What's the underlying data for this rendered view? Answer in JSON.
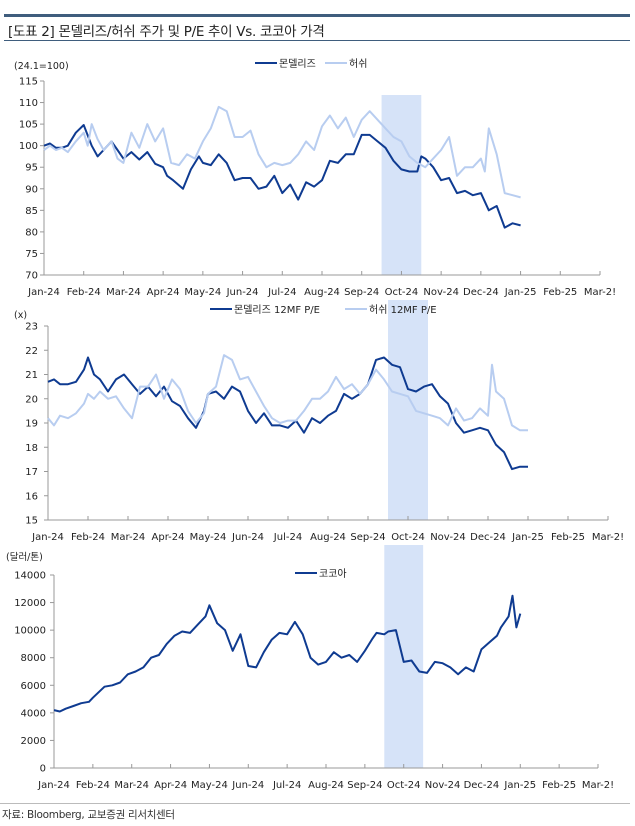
{
  "header": {
    "title": "[도표 2] 몬델리즈/허쉬 주가 및 P/E 추이 Vs. 코코아 가격"
  },
  "footer": {
    "source": "자료: Bloomberg, 교보증권 리서치센터"
  },
  "colors": {
    "dark_series": "#0f3b91",
    "light_series": "#b8cdf0",
    "highlight_band": "#d6e3f8",
    "axis": "#999999"
  },
  "chart_data": [
    {
      "type": "line",
      "title": "",
      "unit_label": "(24.1=100)",
      "ylim": [
        70,
        115
      ],
      "yticks": [
        "70",
        "75",
        "80",
        "85",
        "90",
        "95",
        "100",
        "105",
        "110",
        "115"
      ],
      "xticks": [
        "Jan-24",
        "Feb-24",
        "Mar-24",
        "Apr-24",
        "May-24",
        "Jun-24",
        "Jul-24",
        "Aug-24",
        "Sep-24",
        "Oct-24",
        "Nov-24",
        "Dec-24",
        "Jan-25",
        "Feb-25",
        "Mar-25"
      ],
      "xtick_labels": [
        "Jan-24",
        "Feb-24",
        "Mar-24",
        "Apr-24",
        "May-24",
        "Jun-24",
        "Jul-24",
        "Aug-24",
        "Sep-24",
        "Oct-24",
        "Nov-24",
        "Dec-24",
        "Jan-25",
        "Feb-25",
        "Mar-2!"
      ],
      "x_unit": "months since Jan-24",
      "highlight": {
        "from": 8.5,
        "to": 9.5
      },
      "legend": "top-center",
      "series": [
        {
          "name": "몬델리즈",
          "style": "dark",
          "x": [
            0,
            0.15,
            0.3,
            0.45,
            0.6,
            0.8,
            1.0,
            1.2,
            1.35,
            1.5,
            1.7,
            1.85,
            2.0,
            2.2,
            2.4,
            2.6,
            2.8,
            3.0,
            3.1,
            3.25,
            3.5,
            3.7,
            3.9,
            4.0,
            4.2,
            4.4,
            4.6,
            4.8,
            5.0,
            5.2,
            5.4,
            5.6,
            5.8,
            6.0,
            6.2,
            6.4,
            6.6,
            6.8,
            7.0,
            7.2,
            7.4,
            7.6,
            7.8,
            8.0,
            8.2,
            8.4,
            8.6,
            8.8,
            9.0,
            9.2,
            9.4,
            9.5,
            9.6,
            9.8,
            10.0,
            10.2,
            10.4,
            10.6,
            10.8,
            11.0,
            11.2,
            11.4,
            11.6,
            11.8,
            12.0
          ],
          "y": [
            100,
            100.5,
            99.5,
            99.5,
            100,
            103,
            104.8,
            100,
            97.5,
            99,
            101,
            99,
            97,
            98.5,
            96.8,
            98.5,
            95.8,
            95,
            93,
            92,
            90,
            94.5,
            97.5,
            96,
            95.5,
            98,
            96,
            92,
            92.5,
            92.5,
            90,
            90.5,
            93,
            89,
            91,
            87.5,
            91.5,
            90.5,
            92,
            96.5,
            96,
            98,
            98,
            102.5,
            102.5,
            101,
            99.5,
            96.5,
            94.5,
            94,
            94,
            97.5,
            97,
            95,
            92,
            92.5,
            89,
            89.5,
            88.5,
            89,
            85,
            86,
            81,
            82,
            81.5
          ]
        },
        {
          "name": "허쉬",
          "style": "light",
          "x": [
            0,
            0.15,
            0.3,
            0.45,
            0.6,
            0.8,
            1.0,
            1.1,
            1.2,
            1.35,
            1.5,
            1.7,
            1.85,
            2.0,
            2.2,
            2.4,
            2.6,
            2.8,
            3.0,
            3.2,
            3.4,
            3.6,
            3.8,
            4.0,
            4.2,
            4.4,
            4.6,
            4.8,
            5.0,
            5.2,
            5.4,
            5.6,
            5.8,
            6.0,
            6.2,
            6.4,
            6.6,
            6.8,
            7.0,
            7.2,
            7.4,
            7.6,
            7.8,
            8.0,
            8.2,
            8.4,
            8.6,
            8.8,
            9.0,
            9.2,
            9.4,
            9.6,
            9.8,
            10.0,
            10.2,
            10.4,
            10.6,
            10.8,
            11.0,
            11.1,
            11.2,
            11.4,
            11.6,
            11.8,
            12.0
          ],
          "y": [
            99,
            100,
            99,
            99.5,
            98.5,
            101,
            103,
            100,
            105,
            101.5,
            99,
            101,
            97,
            96,
            103,
            99.5,
            105,
            101,
            104,
            96,
            95.5,
            98,
            97,
            101,
            104,
            109,
            108,
            102,
            102,
            103.5,
            98,
            95,
            96,
            95.5,
            96,
            98,
            101,
            99,
            104.5,
            107,
            104,
            106.5,
            102,
            106,
            108,
            106,
            104,
            102,
            101,
            97.5,
            96,
            95,
            97,
            99,
            102,
            93,
            95,
            95,
            97,
            94,
            104,
            98,
            89,
            88.5,
            88
          ]
        }
      ]
    },
    {
      "type": "line",
      "title": "",
      "unit_label": "(x)",
      "ylim": [
        15,
        23
      ],
      "yticks": [
        "15",
        "16",
        "17",
        "18",
        "19",
        "20",
        "21",
        "22",
        "23"
      ],
      "xtick_labels": [
        "Jan-24",
        "Feb-24",
        "Mar-24",
        "Apr-24",
        "May-24",
        "Jun-24",
        "Jul-24",
        "Aug-24",
        "Sep-24",
        "Oct-24",
        "Nov-24",
        "Dec-24",
        "Jan-25",
        "Feb-25",
        "Mar-2!"
      ],
      "x_unit": "months since Jan-24",
      "highlight": {
        "from": 8.5,
        "to": 9.5
      },
      "legend": "top-center",
      "series": [
        {
          "name": "몬델리즈 12MF P/E",
          "style": "dark",
          "x": [
            0,
            0.15,
            0.3,
            0.5,
            0.7,
            0.9,
            1.0,
            1.15,
            1.3,
            1.5,
            1.7,
            1.9,
            2.1,
            2.3,
            2.5,
            2.7,
            2.9,
            3.1,
            3.3,
            3.5,
            3.7,
            3.9,
            4.0,
            4.2,
            4.4,
            4.6,
            4.8,
            5.0,
            5.2,
            5.4,
            5.6,
            5.8,
            6.0,
            6.2,
            6.4,
            6.6,
            6.8,
            7.0,
            7.2,
            7.4,
            7.6,
            7.8,
            8.0,
            8.2,
            8.4,
            8.6,
            8.8,
            9.0,
            9.2,
            9.4,
            9.6,
            9.8,
            10.0,
            10.2,
            10.4,
            10.6,
            10.8,
            11.0,
            11.2,
            11.4,
            11.6,
            11.8,
            12.0
          ],
          "y": [
            20.7,
            20.8,
            20.6,
            20.6,
            20.7,
            21.2,
            21.7,
            21.0,
            20.8,
            20.3,
            20.8,
            21.0,
            20.6,
            20.2,
            20.5,
            20.1,
            20.5,
            19.9,
            19.7,
            19.2,
            18.8,
            19.5,
            20.2,
            20.3,
            20.0,
            20.5,
            20.3,
            19.5,
            19.0,
            19.4,
            18.9,
            18.9,
            18.8,
            19.1,
            18.6,
            19.2,
            19.0,
            19.3,
            19.5,
            20.2,
            20.0,
            20.2,
            20.6,
            21.6,
            21.7,
            21.4,
            21.3,
            20.4,
            20.3,
            20.5,
            20.6,
            20.1,
            19.8,
            19.0,
            18.6,
            18.7,
            18.8,
            18.7,
            18.1,
            17.8,
            17.1,
            17.2,
            17.2
          ]
        },
        {
          "name": "허쉬 12MF P/E",
          "style": "light",
          "x": [
            0,
            0.15,
            0.3,
            0.5,
            0.7,
            0.9,
            1.0,
            1.15,
            1.3,
            1.5,
            1.7,
            1.9,
            2.1,
            2.3,
            2.5,
            2.7,
            2.9,
            3.1,
            3.3,
            3.5,
            3.7,
            3.9,
            4.0,
            4.2,
            4.4,
            4.6,
            4.8,
            5.0,
            5.2,
            5.4,
            5.6,
            5.8,
            6.0,
            6.2,
            6.4,
            6.6,
            6.8,
            7.0,
            7.2,
            7.4,
            7.6,
            7.8,
            8.0,
            8.2,
            8.4,
            8.6,
            8.8,
            9.0,
            9.2,
            9.4,
            9.6,
            9.8,
            10.0,
            10.2,
            10.4,
            10.6,
            10.8,
            11.0,
            11.1,
            11.2,
            11.4,
            11.6,
            11.8,
            12.0
          ],
          "y": [
            19.2,
            18.9,
            19.3,
            19.2,
            19.4,
            19.8,
            20.2,
            20.0,
            20.3,
            20.0,
            20.1,
            19.6,
            19.2,
            20.5,
            20.5,
            21.0,
            20.0,
            20.8,
            20.4,
            19.5,
            19.0,
            19.4,
            20.2,
            20.5,
            21.8,
            21.6,
            20.8,
            20.9,
            20.3,
            19.7,
            19.2,
            19.0,
            19.1,
            19.1,
            19.5,
            20.0,
            20.0,
            20.3,
            20.9,
            20.4,
            20.6,
            20.2,
            20.6,
            21.2,
            20.8,
            20.3,
            20.2,
            20.1,
            19.5,
            19.4,
            19.3,
            19.2,
            18.9,
            19.6,
            19.1,
            19.2,
            19.6,
            19.3,
            21.4,
            20.3,
            20.0,
            18.9,
            18.7,
            18.7
          ]
        }
      ]
    },
    {
      "type": "line",
      "title": "",
      "unit_label": "(달러/톤)",
      "ylim": [
        0,
        14000
      ],
      "yticks": [
        "0",
        "2000",
        "4000",
        "6000",
        "8000",
        "10000",
        "12000",
        "14000"
      ],
      "xtick_labels": [
        "Jan-24",
        "Feb-24",
        "Mar-24",
        "Apr-24",
        "May-24",
        "Jun-24",
        "Jul-24",
        "Aug-24",
        "Sep-24",
        "Oct-24",
        "Nov-24",
        "Dec-24",
        "Jan-25",
        "Feb-25",
        "Mar-2!"
      ],
      "x_unit": "months since Jan-24",
      "highlight": {
        "from": 8.5,
        "to": 9.5
      },
      "legend": "top-center",
      "series": [
        {
          "name": "코코아",
          "style": "dark",
          "x": [
            0,
            0.15,
            0.3,
            0.5,
            0.7,
            0.9,
            1.0,
            1.15,
            1.3,
            1.5,
            1.7,
            1.9,
            2.1,
            2.3,
            2.5,
            2.7,
            2.9,
            3.1,
            3.3,
            3.5,
            3.7,
            3.9,
            4.0,
            4.2,
            4.4,
            4.6,
            4.8,
            5.0,
            5.2,
            5.4,
            5.6,
            5.8,
            6.0,
            6.2,
            6.4,
            6.6,
            6.8,
            7.0,
            7.2,
            7.4,
            7.6,
            7.8,
            8.0,
            8.2,
            8.3,
            8.5,
            8.6,
            8.8,
            9.0,
            9.2,
            9.4,
            9.6,
            9.8,
            10.0,
            10.2,
            10.4,
            10.6,
            10.8,
            11.0,
            11.2,
            11.4,
            11.5,
            11.7,
            11.8,
            11.9,
            12.0
          ],
          "y": [
            4200,
            4100,
            4300,
            4500,
            4700,
            4800,
            5100,
            5500,
            5900,
            6000,
            6200,
            6800,
            7000,
            7300,
            8000,
            8200,
            9000,
            9600,
            9900,
            9800,
            10400,
            11000,
            11800,
            10500,
            10000,
            8500,
            9700,
            7400,
            7300,
            8400,
            9300,
            9800,
            9700,
            10600,
            9700,
            8000,
            7500,
            7700,
            8400,
            8000,
            8200,
            7700,
            8500,
            9400,
            9800,
            9700,
            9900,
            10000,
            7700,
            7800,
            7000,
            6900,
            7700,
            7600,
            7300,
            6800,
            7300,
            7000,
            8600,
            9100,
            9600,
            10200,
            11000,
            12500,
            10200,
            11200
          ]
        }
      ]
    }
  ]
}
